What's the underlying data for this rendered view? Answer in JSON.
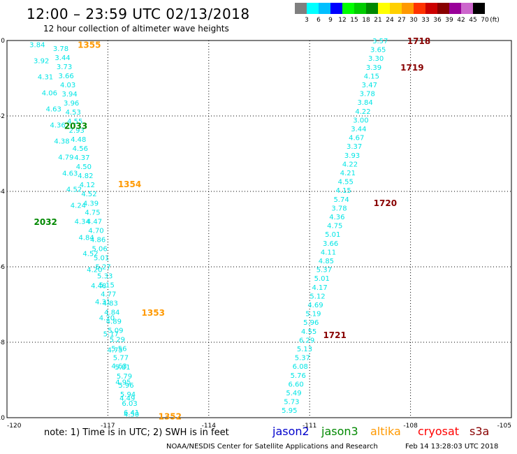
{
  "header": {
    "title": "12:00 – 23:59 UTC 02/13/2018",
    "subtitle": "12 hour collection of altimeter wave heights"
  },
  "legend": {
    "unit": "(ft)",
    "bins": [
      {
        "label": "3",
        "color": "#7f7f7f"
      },
      {
        "label": "6",
        "color": "#00ffff"
      },
      {
        "label": "9",
        "color": "#00bfff"
      },
      {
        "label": "12",
        "color": "#0000ff"
      },
      {
        "label": "15",
        "color": "#00ff00"
      },
      {
        "label": "18",
        "color": "#00cc00"
      },
      {
        "label": "21",
        "color": "#008800"
      },
      {
        "label": "24",
        "color": "#ffff00"
      },
      {
        "label": "27",
        "color": "#ffd000"
      },
      {
        "label": "30",
        "color": "#ff9900"
      },
      {
        "label": "33",
        "color": "#ff3300"
      },
      {
        "label": "36",
        "color": "#cc0000"
      },
      {
        "label": "39",
        "color": "#880000"
      },
      {
        "label": "42",
        "color": "#990099"
      },
      {
        "label": "45",
        "color": "#cc66cc"
      },
      {
        "label": "70",
        "color": "#000000"
      }
    ]
  },
  "map": {
    "lon_range": [
      -120,
      -105
    ],
    "lat_range": [
      -10,
      0
    ],
    "lon_ticks": [
      "-120",
      "-117",
      "-114",
      "-111",
      "-108",
      "-105"
    ],
    "lat_ticks": [
      "0",
      "-2",
      "-4",
      "-6",
      "-8",
      "-10"
    ],
    "swh_color": "#00e5e5",
    "tracks": [
      {
        "name": "A",
        "lon_start": -119.1,
        "lon_end": -116.3,
        "lat_start": -0.1,
        "lat_end": -9.9,
        "values": [
          "3.84",
          "3.92",
          "4.31",
          "4.06",
          "4.63",
          "4.36",
          "4.38",
          "4.79",
          "4.63",
          "4.52",
          "4.24",
          "4.34",
          "4.84",
          "4.52",
          "4.20",
          "4.48",
          "4.31",
          "4.20",
          "5.17",
          "4.75",
          "4.63",
          "4.95",
          "4.49",
          "4.50"
        ]
      },
      {
        "name": "B",
        "lon_start": -118.4,
        "lon_end": -116.3,
        "lat_start": -0.2,
        "lat_end": -9.85,
        "values": [
          "3.78",
          "3.44",
          "3.73",
          "3.66",
          "4.03",
          "3.94",
          "3.96",
          "4.53",
          "4.55",
          "2.93",
          "4.48",
          "4.56",
          "4.37",
          "4.50",
          "4.82",
          "4.12",
          "4.52",
          "4.39",
          "4.75",
          "4.47",
          "4.70",
          "4.86",
          "5.06",
          "5.01",
          "5.27",
          "5.33",
          "5.15",
          "4.77",
          "4.83",
          "4.84",
          "4.89",
          "5.09",
          "5.29",
          "5.56",
          "5.77",
          "5.81",
          "5.79",
          "5.96",
          "5.94",
          "6.03",
          "6.41"
        ]
      },
      {
        "name": "C",
        "lon_start": -108.9,
        "lon_end": -111.6,
        "lat_start": 0.0,
        "lat_end": -9.8,
        "values": [
          "3.57",
          "3.65",
          "3.30",
          "3.39",
          "4.15",
          "3.47",
          "3.78",
          "3.84",
          "4.22",
          "3.00",
          "3.44",
          "4.67",
          "3.37",
          "3.93",
          "4.22",
          "4.21",
          "4.55",
          "4.15",
          "5.74",
          "3.78",
          "4.36",
          "4.75",
          "5.01",
          "3.66",
          "4.11",
          "4.85",
          "5.37",
          "5.01",
          "4.17",
          "5.12",
          "4.69",
          "5.19",
          "5.96",
          "4.55",
          "6.29",
          "5.13",
          "5.37",
          "6.08",
          "5.76",
          "6.60",
          "5.49",
          "5.73",
          "5.95"
        ]
      }
    ],
    "time_labels": [
      {
        "text": "1355",
        "lon": -117.9,
        "lat": -0.1,
        "color": "#ff9900"
      },
      {
        "text": "2033",
        "lon": -118.3,
        "lat": -2.25,
        "color": "#008800"
      },
      {
        "text": "1354",
        "lon": -116.7,
        "lat": -3.8,
        "color": "#ff9900"
      },
      {
        "text": "2032",
        "lon": -119.2,
        "lat": -4.8,
        "color": "#008800"
      },
      {
        "text": "1353",
        "lon": -116.0,
        "lat": -7.2,
        "color": "#ff9900"
      },
      {
        "text": "1352",
        "lon": -115.5,
        "lat": -9.95,
        "color": "#ff9900"
      },
      {
        "text": "1718",
        "lon": -108.1,
        "lat": 0.0,
        "color": "#880000"
      },
      {
        "text": "1719",
        "lon": -108.3,
        "lat": -0.7,
        "color": "#880000"
      },
      {
        "text": "1720",
        "lon": -109.1,
        "lat": -4.3,
        "color": "#880000"
      },
      {
        "text": "1721",
        "lon": -110.6,
        "lat": -7.8,
        "color": "#880000"
      }
    ]
  },
  "footer": {
    "note": "note:  1) Time is in UTC;  2) SWH is in feet",
    "satellites": [
      {
        "name": "jason2",
        "color": "#0000cc"
      },
      {
        "name": "jason3",
        "color": "#008800"
      },
      {
        "name": "altika",
        "color": "#ff9900"
      },
      {
        "name": "cryosat",
        "color": "#ff0000"
      },
      {
        "name": "s3a",
        "color": "#880000"
      }
    ],
    "credit": "NOAA/NESDIS Center for Satellite Applications and Research",
    "timestamp": "Feb 14 13:28:03 UTC 2018"
  }
}
